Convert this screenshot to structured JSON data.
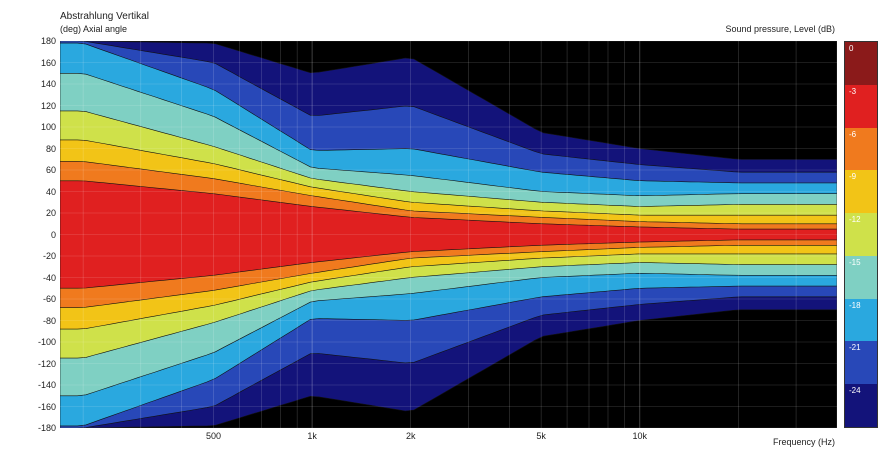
{
  "chart_data": {
    "type": "heatmap",
    "title": "Abstrahlung Vertikal",
    "subtitle": "(deg)  Axial angle",
    "legend_title": "Sound pressure, Level  (dB)",
    "xlabel": "Frequency  (Hz)",
    "x_scale": "log",
    "xlim": [
      170,
      40000
    ],
    "x_ticks": [
      {
        "value": 500,
        "label": "500"
      },
      {
        "value": 1000,
        "label": "1k"
      },
      {
        "value": 2000,
        "label": "2k"
      },
      {
        "value": 5000,
        "label": "5k"
      },
      {
        "value": 10000,
        "label": "10k"
      }
    ],
    "ylim": [
      -180,
      180
    ],
    "y_ticks": [
      180,
      160,
      140,
      120,
      100,
      80,
      60,
      40,
      20,
      0,
      -20,
      -40,
      -60,
      -80,
      -100,
      -120,
      -140,
      -160,
      -180
    ],
    "color_scale": {
      "levels": [
        0,
        -3,
        -6,
        -9,
        -12,
        -15,
        -18,
        -21,
        -24
      ],
      "labels": [
        "0",
        "-3",
        "-6",
        "-9",
        "-12",
        "-15",
        "-18",
        "-21",
        "-24"
      ],
      "colors": [
        "#8b1a1a",
        "#e02020",
        "#f07a1e",
        "#f2c417",
        "#cfe14a",
        "#7fd0c3",
        "#2aa8df",
        "#2848b8",
        "#13137a",
        "#000000"
      ]
    },
    "beamwidth_half_angle_deg": [
      {
        "freq": 200,
        "-3": 50,
        "-6": 68,
        "-9": 88,
        "-12": 115,
        "-15": 150,
        "-18": 178,
        "-21": 180,
        "-24": 180
      },
      {
        "freq": 500,
        "-3": 38,
        "-6": 52,
        "-9": 66,
        "-12": 82,
        "-15": 110,
        "-18": 135,
        "-21": 160,
        "-24": 178
      },
      {
        "freq": 1000,
        "-3": 26,
        "-6": 36,
        "-9": 44,
        "-12": 52,
        "-15": 62,
        "-18": 78,
        "-21": 110,
        "-24": 150
      },
      {
        "freq": 2000,
        "-3": 16,
        "-6": 22,
        "-9": 30,
        "-12": 40,
        "-15": 55,
        "-18": 80,
        "-21": 120,
        "-24": 165
      },
      {
        "freq": 5000,
        "-3": 10,
        "-6": 16,
        "-9": 22,
        "-12": 30,
        "-15": 40,
        "-18": 58,
        "-21": 75,
        "-24": 95
      },
      {
        "freq": 10000,
        "-3": 7,
        "-6": 12,
        "-9": 18,
        "-12": 26,
        "-15": 36,
        "-18": 50,
        "-21": 65,
        "-24": 80
      },
      {
        "freq": 20000,
        "-3": 5,
        "-6": 10,
        "-9": 18,
        "-12": 28,
        "-15": 38,
        "-18": 48,
        "-21": 58,
        "-24": 70
      }
    ],
    "grid": true,
    "legend_position": "right"
  }
}
